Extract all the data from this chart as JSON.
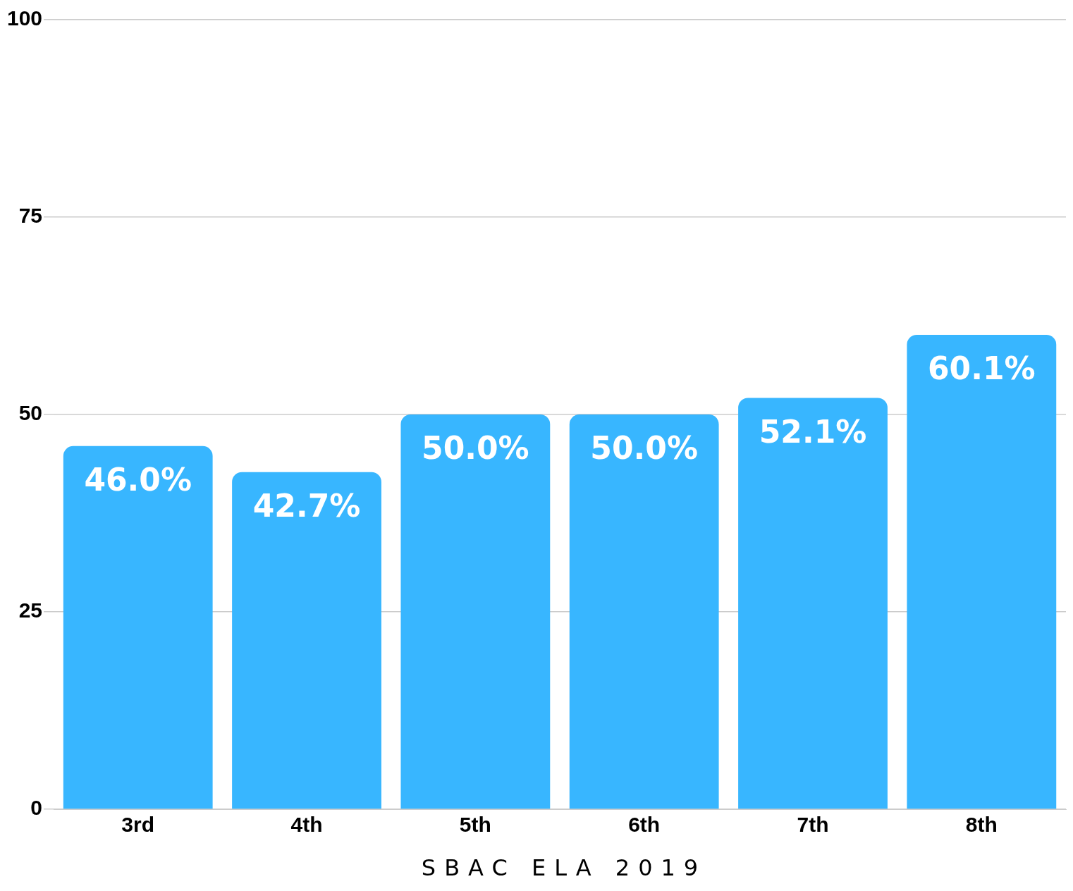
{
  "chart_data": {
    "type": "bar",
    "xlabel": "SBAC ELA 2019",
    "categories": [
      "3rd",
      "4th",
      "5th",
      "6th",
      "7th",
      "8th"
    ],
    "values": [
      46.0,
      42.7,
      50.0,
      50.0,
      52.1,
      60.1
    ],
    "value_labels": [
      "46.0%",
      "42.7%",
      "50.0%",
      "50.0%",
      "52.1%",
      "60.1%"
    ],
    "color": "#38b6ff",
    "ylim": [
      0,
      100
    ],
    "yticks": [
      0,
      25,
      50,
      75,
      100
    ],
    "grid": "y",
    "legend": false
  }
}
